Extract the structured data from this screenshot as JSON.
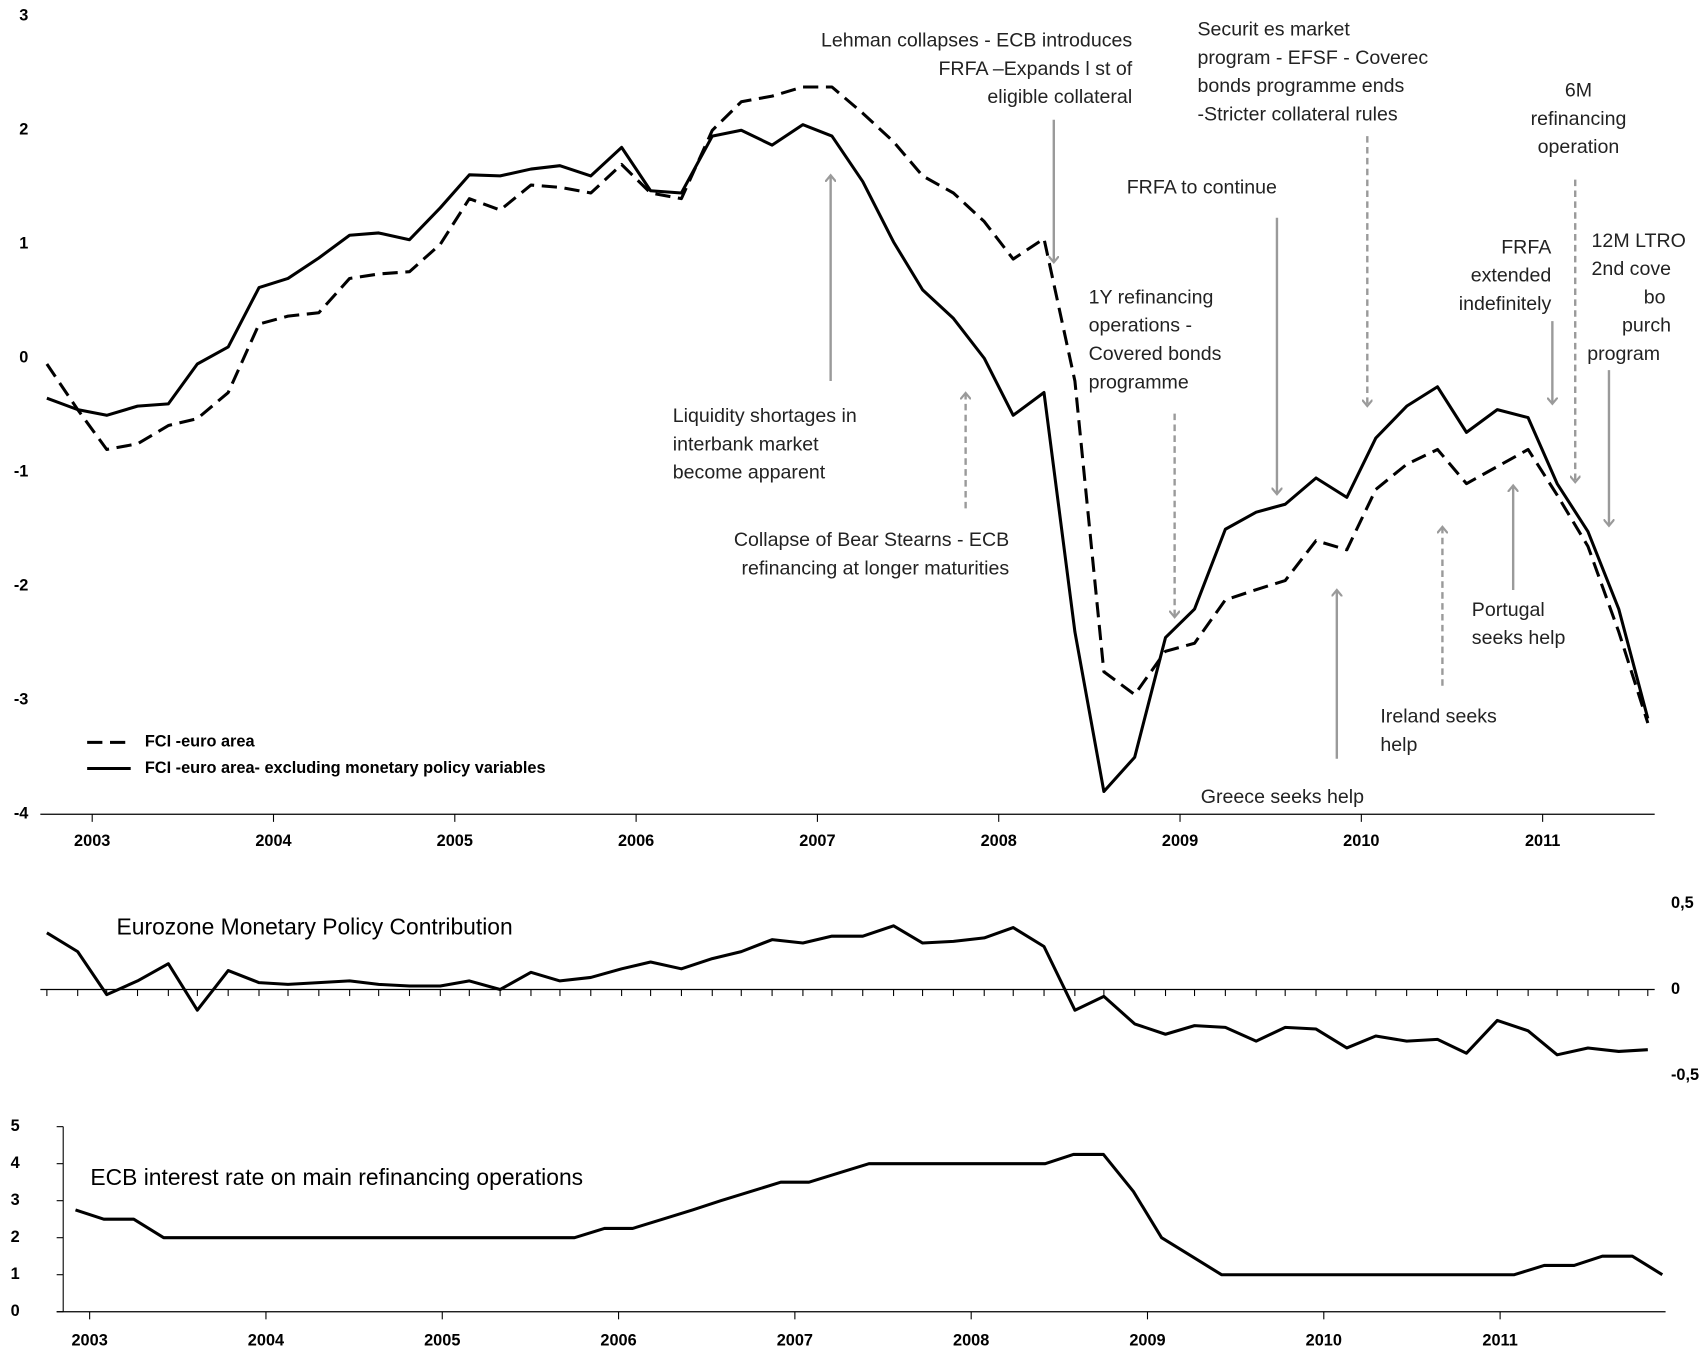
{
  "chart_data": [
    {
      "type": "line",
      "x": [
        2002.75,
        2002.92,
        2003.08,
        2003.25,
        2003.42,
        2003.58,
        2003.75,
        2003.92,
        2004.08,
        2004.25,
        2004.42,
        2004.58,
        2004.75,
        2004.92,
        2005.08,
        2005.25,
        2005.42,
        2005.58,
        2005.75,
        2005.92,
        2006.08,
        2006.25,
        2006.42,
        2006.58,
        2006.75,
        2006.92,
        2007.08,
        2007.25,
        2007.42,
        2007.58,
        2007.75,
        2007.92,
        2008.08,
        2008.25,
        2008.42,
        2008.58,
        2008.75,
        2008.92,
        2009.08,
        2009.25,
        2009.42,
        2009.58,
        2009.75,
        2009.92,
        2010.08,
        2010.25,
        2010.42,
        2010.58,
        2010.75,
        2010.92,
        2011.08,
        2011.25,
        2011.42,
        2011.58
      ],
      "series": [
        {
          "name": "FCI -euro area",
          "color": "#000000",
          "line_style": "dashed",
          "values": [
            -0.05,
            -0.45,
            -0.8,
            -0.75,
            -0.59,
            -0.53,
            -0.3,
            0.3,
            0.37,
            0.4,
            0.7,
            0.74,
            0.76,
            1.0,
            1.4,
            1.3,
            1.52,
            1.5,
            1.45,
            1.7,
            1.45,
            1.4,
            2.0,
            2.25,
            2.3,
            2.38,
            2.38,
            2.15,
            1.9,
            1.6,
            1.45,
            1.2,
            0.87,
            1.05,
            -0.2,
            -2.75,
            -2.95,
            -2.57,
            -2.5,
            -2.12,
            -2.03,
            -1.95,
            -1.6,
            -1.68,
            -1.15,
            -0.93,
            -0.8,
            -1.1,
            -0.95,
            -0.8,
            -1.2,
            -1.65,
            -2.4,
            -3.2
          ]
        },
        {
          "name": "FCI -euro area- excluding monetary policy variables",
          "color": "#000000",
          "line_style": "solid",
          "values": [
            -0.35,
            -0.45,
            -0.5,
            -0.42,
            -0.4,
            -0.05,
            0.1,
            0.62,
            0.7,
            0.88,
            1.08,
            1.1,
            1.04,
            1.32,
            1.61,
            1.6,
            1.66,
            1.69,
            1.6,
            1.85,
            1.47,
            1.45,
            1.95,
            2.0,
            1.87,
            2.05,
            1.95,
            1.55,
            1.02,
            0.6,
            0.35,
            0.0,
            -0.5,
            -0.3,
            -2.4,
            -3.8,
            -3.5,
            -2.45,
            -2.2,
            -1.5,
            -1.35,
            -1.28,
            -1.05,
            -1.22,
            -0.7,
            -0.42,
            -0.25,
            -0.65,
            -0.45,
            -0.52,
            -1.1,
            -1.52,
            -2.2,
            -3.16
          ]
        }
      ],
      "xlim": [
        2002.75,
        2011.6
      ],
      "xticks": [
        2003,
        2004,
        2005,
        2006,
        2007,
        2008,
        2009,
        2010,
        2011
      ],
      "ylim": [
        -4,
        3
      ],
      "yticks": [
        -4,
        -3,
        -2,
        -1,
        0,
        1,
        2,
        3
      ],
      "legend": "lower left",
      "annotations": [
        {
          "lines": [
            "Lehman collapses - ECB introduces",
            "FRFA –Expands l st of",
            "eligible collateral"
          ]
        },
        {
          "lines": [
            "Securit es market",
            "program - EFSF - Coverec",
            "bonds programme  ends",
            "-Stricter collateral rules"
          ]
        },
        {
          "lines": [
            "6M",
            "refinancing",
            "operation"
          ]
        },
        {
          "lines": [
            "FRFA to continue"
          ]
        },
        {
          "lines": [
            "FRFA",
            "extended",
            "indefinitely"
          ]
        },
        {
          "lines": [
            "12M LTRO",
            "2nd cove",
            "bo",
            "purch",
            "program"
          ]
        },
        {
          "lines": [
            "1Y refinancing",
            "operations -",
            "Covered bonds",
            "programme"
          ]
        },
        {
          "lines": [
            "Liquidity shortages in",
            "interbank market",
            "become apparent"
          ]
        },
        {
          "lines": [
            "Collapse of Bear Stearns - ECB",
            "refinancing at longer maturities"
          ]
        },
        {
          "lines": [
            "Greece seeks help"
          ]
        },
        {
          "lines": [
            "Ireland seeks",
            "help"
          ]
        },
        {
          "lines": [
            "Portugal",
            "seeks help"
          ]
        }
      ]
    },
    {
      "type": "line",
      "title": "Eurozone Monetary Policy Contribution",
      "color": "#000000",
      "x": [
        2002.75,
        2002.92,
        2003.08,
        2003.25,
        2003.42,
        2003.58,
        2003.75,
        2003.92,
        2004.08,
        2004.25,
        2004.42,
        2004.58,
        2004.75,
        2004.92,
        2005.08,
        2005.25,
        2005.42,
        2005.58,
        2005.75,
        2005.92,
        2006.08,
        2006.25,
        2006.42,
        2006.58,
        2006.75,
        2006.92,
        2007.08,
        2007.25,
        2007.42,
        2007.58,
        2007.75,
        2007.92,
        2008.08,
        2008.25,
        2008.42,
        2008.58,
        2008.75,
        2008.92,
        2009.08,
        2009.25,
        2009.42,
        2009.58,
        2009.75,
        2009.92,
        2010.08,
        2010.25,
        2010.42,
        2010.58,
        2010.75,
        2010.92,
        2011.08,
        2011.25,
        2011.42,
        2011.58
      ],
      "values": [
        0.33,
        0.22,
        -0.03,
        0.05,
        0.15,
        -0.12,
        0.11,
        0.04,
        0.03,
        0.04,
        0.05,
        0.03,
        0.02,
        0.02,
        0.05,
        0.0,
        0.1,
        0.05,
        0.07,
        0.12,
        0.16,
        0.12,
        0.18,
        0.22,
        0.29,
        0.27,
        0.31,
        0.31,
        0.37,
        0.27,
        0.28,
        0.3,
        0.36,
        0.25,
        -0.12,
        -0.04,
        -0.2,
        -0.26,
        -0.21,
        -0.22,
        -0.3,
        -0.22,
        -0.23,
        -0.34,
        -0.27,
        -0.3,
        -0.29,
        -0.37,
        -0.18,
        -0.24,
        -0.38,
        -0.34,
        -0.36,
        -0.35
      ],
      "xlim": [
        2002.75,
        2011.6
      ],
      "ylim": [
        -0.5,
        0.5
      ],
      "yticks": [
        {
          "value": 0.5,
          "label": "0,5"
        },
        0,
        {
          "value": -0.5,
          "label": "-0,5"
        }
      ]
    },
    {
      "type": "line",
      "title": "ECB interest rate on main refinancing operations",
      "color": "#000000",
      "x": [
        2002.92,
        2003.08,
        2003.25,
        2003.42,
        2003.58,
        2003.75,
        2003.92,
        2004.08,
        2004.25,
        2004.42,
        2004.58,
        2004.75,
        2004.92,
        2005.08,
        2005.25,
        2005.42,
        2005.58,
        2005.75,
        2005.92,
        2006.08,
        2006.25,
        2006.42,
        2006.58,
        2006.75,
        2006.92,
        2007.08,
        2007.25,
        2007.42,
        2007.58,
        2007.75,
        2007.92,
        2008.08,
        2008.25,
        2008.42,
        2008.58,
        2008.75,
        2008.92,
        2009.08,
        2009.25,
        2009.42,
        2009.58,
        2009.75,
        2009.92,
        2010.08,
        2010.25,
        2010.42,
        2010.58,
        2010.75,
        2010.92,
        2011.08,
        2011.25,
        2011.42,
        2011.58,
        2011.75,
        2011.92
      ],
      "values": [
        2.75,
        2.5,
        2.5,
        2.0,
        2.0,
        2.0,
        2.0,
        2.0,
        2.0,
        2.0,
        2.0,
        2.0,
        2.0,
        2.0,
        2.0,
        2.0,
        2.0,
        2.0,
        2.25,
        2.25,
        2.5,
        2.75,
        3.0,
        3.25,
        3.5,
        3.5,
        3.75,
        4.0,
        4.0,
        4.0,
        4.0,
        4.0,
        4.0,
        4.0,
        4.25,
        4.25,
        3.25,
        2.0,
        1.5,
        1.0,
        1.0,
        1.0,
        1.0,
        1.0,
        1.0,
        1.0,
        1.0,
        1.0,
        1.0,
        1.0,
        1.25,
        1.25,
        1.5,
        1.5,
        1.0
      ],
      "xlim": [
        2002.85,
        2011.92
      ],
      "xticks": [
        2003,
        2004,
        2005,
        2006,
        2007,
        2008,
        2009,
        2010,
        2011
      ],
      "ylim": [
        0,
        5
      ],
      "yticks": [
        0,
        1,
        2,
        3,
        4,
        5
      ]
    }
  ]
}
